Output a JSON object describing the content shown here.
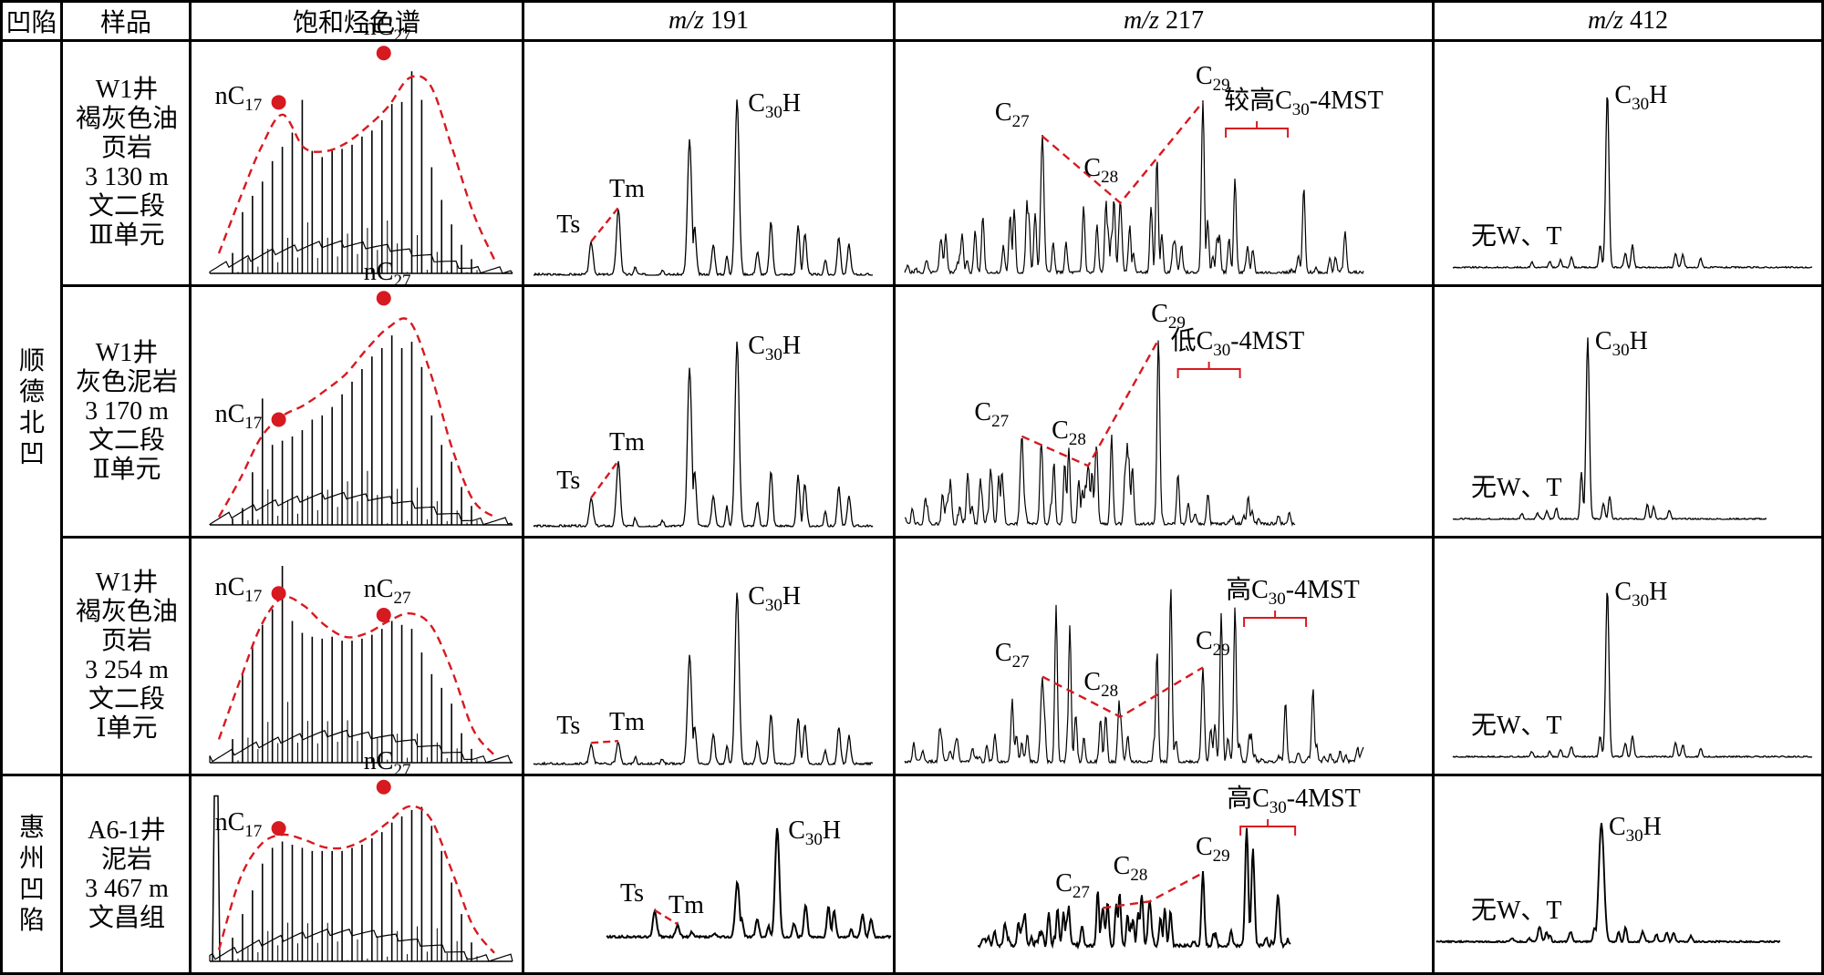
{
  "header": {
    "basin": "凹陷",
    "sample": "样品",
    "saturate": "饱和烃色谱",
    "mz191": {
      "prefix": "m/z",
      "value": "191"
    },
    "mz217": {
      "prefix": "m/z",
      "value": "217"
    },
    "mz412": {
      "prefix": "m/z",
      "value": "412"
    }
  },
  "colors": {
    "trace": "#000000",
    "annotation": "#d71920",
    "grid": "#000000"
  },
  "basins": [
    {
      "name": "顺德北凹",
      "chars": [
        "顺",
        "德",
        "北",
        "凹"
      ],
      "rows": [
        0,
        1,
        2
      ]
    },
    {
      "name": "惠州凹陷",
      "chars": [
        "惠",
        "州",
        "凹",
        "陷"
      ],
      "rows": [
        3
      ]
    }
  ],
  "rows": [
    {
      "sample_lines": [
        "W1井",
        "褐灰色油",
        "页岩",
        "3 130 m",
        "文二段",
        "Ⅲ单元"
      ],
      "saturate": {
        "labels": [
          "nC17",
          "nC27"
        ],
        "dominant": "bimodal, nC27 > nC17",
        "envelope": [
          0.08,
          0.35,
          0.6,
          0.76,
          0.6,
          0.58,
          0.62,
          0.7,
          0.8,
          0.94,
          0.9,
          0.6,
          0.28,
          0.05
        ],
        "peaks": [
          0.1,
          0.3,
          0.38,
          0.45,
          0.55,
          0.62,
          0.69,
          0.85,
          0.6,
          0.57,
          0.6,
          0.61,
          0.63,
          0.67,
          0.7,
          0.75,
          0.83,
          0.84,
          0.99,
          0.85,
          0.52,
          0.36,
          0.24,
          0.14,
          0.07
        ]
      },
      "mz191": {
        "labels": [
          "Ts",
          "Tm",
          "C30H"
        ],
        "ts": 0.17,
        "tm": 0.35,
        "main_peak": 0.93,
        "c29": 0.72
      },
      "mz217": {
        "labels": [
          "C27",
          "C28",
          "C29"
        ],
        "c27": 0.72,
        "c28": 0.37,
        "c29": 0.9,
        "mst_label": "较高C30-4MST",
        "mst_prefix": "较高",
        "mst_level": "较高"
      },
      "mz412": {
        "labels": [
          "C30H"
        ],
        "note": "无W、T",
        "main_peak": 0.95
      }
    },
    {
      "sample_lines": [
        "W1井",
        "灰色泥岩",
        "3 170 m",
        "文二段",
        "Ⅱ单元"
      ],
      "saturate": {
        "labels": [
          "nC17",
          "nC27"
        ],
        "dominant": "nC27 dominant",
        "envelope": [
          0.02,
          0.2,
          0.4,
          0.5,
          0.55,
          0.62,
          0.7,
          0.82,
          0.92,
          0.95,
          0.7,
          0.35,
          0.1,
          0.02
        ],
        "peaks": [
          0.03,
          0.08,
          0.25,
          0.6,
          0.38,
          0.4,
          0.42,
          0.45,
          0.5,
          0.52,
          0.56,
          0.62,
          0.68,
          0.74,
          0.8,
          0.84,
          0.9,
          0.84,
          0.87,
          0.75,
          0.52,
          0.38,
          0.3,
          0.18,
          0.09
        ]
      },
      "mz191": {
        "labels": [
          "Ts",
          "Tm",
          "C30H"
        ],
        "ts": 0.14,
        "tm": 0.33,
        "main_peak": 0.95,
        "c29": 0.82
      },
      "mz217": {
        "labels": [
          "C27",
          "C28",
          "C29"
        ],
        "c27": 0.45,
        "c28": 0.3,
        "c29": 0.94,
        "mst_label": "低C30-4MST",
        "mst_prefix": "低",
        "mst_level": "低"
      },
      "mz412": {
        "labels": [
          "C30H"
        ],
        "note": "无W、T",
        "main_peak": 0.95
      }
    },
    {
      "sample_lines": [
        "W1井",
        "褐灰色油",
        "页岩",
        "3 254 m",
        "文二段",
        "Ⅰ单元"
      ],
      "saturate": {
        "labels": [
          "nC17",
          "nC27"
        ],
        "dominant": "bimodal, nC17 ≈ nC27",
        "envelope": [
          0.1,
          0.4,
          0.68,
          0.82,
          0.78,
          0.68,
          0.62,
          0.64,
          0.7,
          0.74,
          0.68,
          0.45,
          0.15,
          0.02
        ],
        "peaks": [
          0.12,
          0.45,
          0.6,
          0.7,
          0.78,
          1.0,
          0.72,
          0.66,
          0.64,
          0.63,
          0.64,
          0.62,
          0.62,
          0.63,
          0.65,
          0.68,
          0.72,
          0.7,
          0.68,
          0.56,
          0.45,
          0.38,
          0.3,
          0.15,
          0.07
        ]
      },
      "mz191": {
        "labels": [
          "Ts",
          "Tm",
          "C30H"
        ],
        "ts": 0.11,
        "tm": 0.12,
        "main_peak": 0.95,
        "c29": 0.6
      },
      "mz217": {
        "labels": [
          "C27",
          "C28",
          "C29"
        ],
        "c27": 0.47,
        "c28": 0.25,
        "c29": 0.52,
        "mst_label": "高C30-4MST",
        "mst_prefix": "高",
        "mst_level": "高"
      },
      "mz412": {
        "labels": [
          "C30H"
        ],
        "note": "无W、T",
        "main_peak": 0.95
      }
    },
    {
      "sample_lines": [
        "A6-1井",
        "泥岩",
        "3 467 m",
        "文昌组"
      ],
      "saturate": {
        "labels": [
          "nC17",
          "nC27"
        ],
        "dominant": "bimodal, nC27 > nC17",
        "envelope": [
          0.05,
          0.5,
          0.72,
          0.78,
          0.75,
          0.7,
          0.7,
          0.76,
          0.86,
          0.96,
          0.88,
          0.55,
          0.2,
          0.03
        ],
        "peaks": [
          0.15,
          0.3,
          0.45,
          0.62,
          0.72,
          0.76,
          0.74,
          0.72,
          0.7,
          0.7,
          0.7,
          0.7,
          0.72,
          0.74,
          0.78,
          0.82,
          0.88,
          0.92,
          0.96,
          0.98,
          0.86,
          0.7,
          0.5,
          0.3,
          0.12
        ]
      },
      "mz191": {
        "labels": [
          "Ts",
          "Tm",
          "C30H"
        ],
        "ts": 0.22,
        "tm": 0.1,
        "main_peak": 0.95,
        "c29": 0.48
      },
      "mz217": {
        "labels": [
          "C27",
          "C28",
          "C29"
        ],
        "c27": 0.3,
        "c28": 0.35,
        "c29": 0.57,
        "mst_label": "高C30-4MST",
        "mst_prefix": "高",
        "mst_level": "高"
      },
      "mz412": {
        "labels": [
          "C30H"
        ],
        "note": "无W、T",
        "main_peak": 0.95
      }
    }
  ],
  "chart_data": {
    "type": "table",
    "title": "",
    "columns": [
      "凹陷",
      "样品",
      "饱和烃色谱",
      "m/z 191",
      "m/z 217",
      "m/z 412"
    ],
    "row_groups": [
      {
        "basin": "顺德北凹",
        "samples": [
          "W1井 褐灰色油页岩 3 130 m 文二段 Ⅲ单元",
          "W1井 灰色泥岩 3 170 m 文二段 Ⅱ单元",
          "W1井 褐灰色油页岩 3 254 m 文二段 Ⅰ单元"
        ]
      },
      {
        "basin": "惠州凹陷",
        "samples": [
          "A6-1井 泥岩 3 467 m 文昌组"
        ]
      }
    ],
    "annotations": {
      "saturate": [
        "nC17",
        "nC27"
      ],
      "mz191": [
        "Ts",
        "Tm",
        "C30H"
      ],
      "mz217": [
        "C27",
        "C28",
        "C29",
        "较高C30-4MST",
        "低C30-4MST",
        "高C30-4MST",
        "高C30-4MST"
      ],
      "mz412": [
        "C30H",
        "无W、T"
      ]
    },
    "series_note": "Chromatogram traces; relative intensities normalized to tallest peak (0–1)",
    "xlabel": "",
    "ylabel": ""
  }
}
